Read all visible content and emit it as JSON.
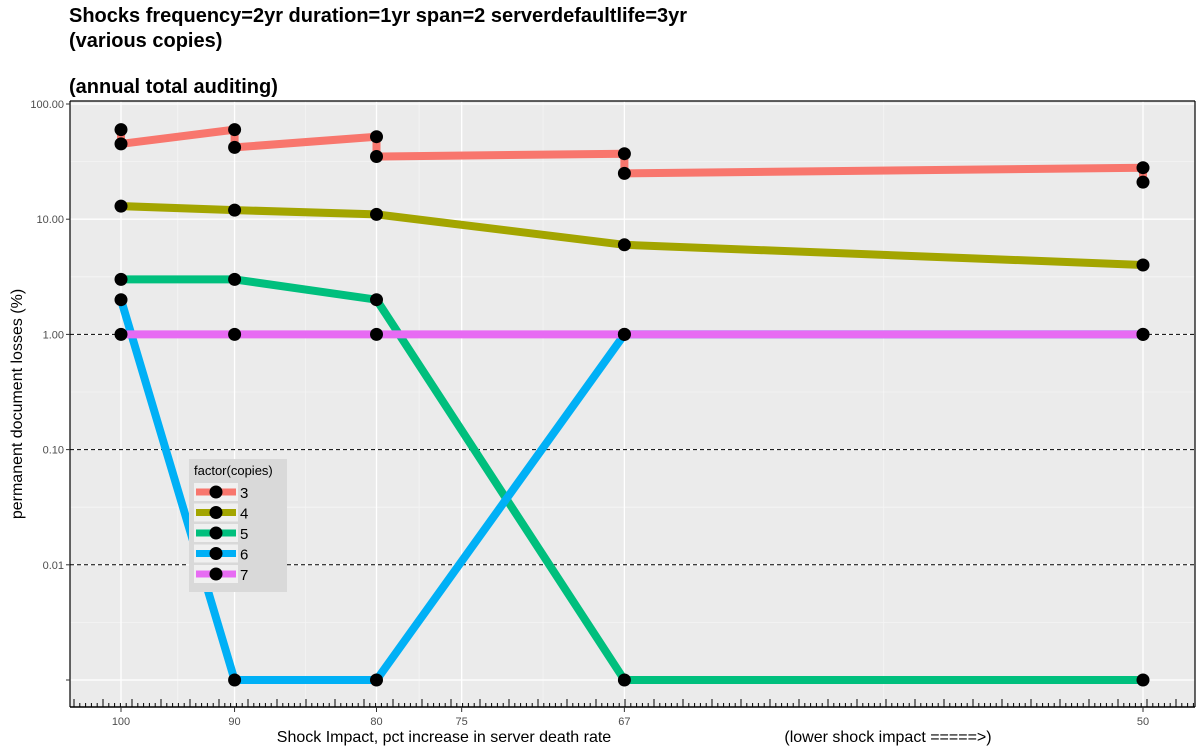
{
  "title_lines": [
    "Shocks frequency=2yr duration=1yr span=2 serverdefaultlife=3yr",
    "(various copies)",
    "(annual total auditing)"
  ],
  "chart_data": {
    "type": "line",
    "title": "Shocks frequency=2yr duration=1yr span=2 serverdefaultlife=3yr (various copies) (annual total auditing)",
    "xlabel": "Shock Impact, pct increase in server death rate",
    "xlabel_note": "(lower shock impact =====>)",
    "ylabel": "permanent document losses (%)",
    "x_scale": "reciprocal (decreasing left to right)",
    "y_scale": "log10",
    "x_ticks": [
      100,
      90,
      80,
      75,
      67,
      50
    ],
    "y_tick_labels": [
      "100.00",
      "10.00",
      "1.00",
      "0.10",
      "0.01",
      ""
    ],
    "y_tick_values": [
      100,
      10,
      1,
      0.1,
      0.01,
      0.001
    ],
    "reference_lines_y": [
      1,
      0.1,
      0.01
    ],
    "grid": true,
    "legend_title": "factor(copies)",
    "legend_position": "left-center",
    "series": [
      {
        "name": "3",
        "color": "#F8766D",
        "points": [
          [
            100,
            60
          ],
          [
            100,
            45
          ],
          [
            90,
            60
          ],
          [
            90,
            42
          ],
          [
            80,
            52
          ],
          [
            80,
            35
          ],
          [
            67,
            37
          ],
          [
            67,
            25
          ],
          [
            50,
            28
          ],
          [
            50,
            21
          ]
        ]
      },
      {
        "name": "4",
        "color": "#A3A500",
        "points": [
          [
            100,
            13
          ],
          [
            90,
            12
          ],
          [
            80,
            11
          ],
          [
            67,
            6
          ],
          [
            50,
            4
          ]
        ]
      },
      {
        "name": "5",
        "color": "#00BF7D",
        "points": [
          [
            100,
            3
          ],
          [
            90,
            3
          ],
          [
            80,
            2
          ],
          [
            67,
            0.001
          ],
          [
            50,
            0.001
          ]
        ]
      },
      {
        "name": "6",
        "color": "#00B0F6",
        "points": [
          [
            100,
            2
          ],
          [
            90,
            0.001
          ],
          [
            80,
            0.001
          ],
          [
            67,
            1
          ],
          [
            50,
            1
          ]
        ]
      },
      {
        "name": "7",
        "color": "#E76BF3",
        "points": [
          [
            100,
            1
          ],
          [
            90,
            1
          ],
          [
            80,
            1
          ],
          [
            67,
            1
          ],
          [
            50,
            1
          ]
        ]
      }
    ]
  }
}
